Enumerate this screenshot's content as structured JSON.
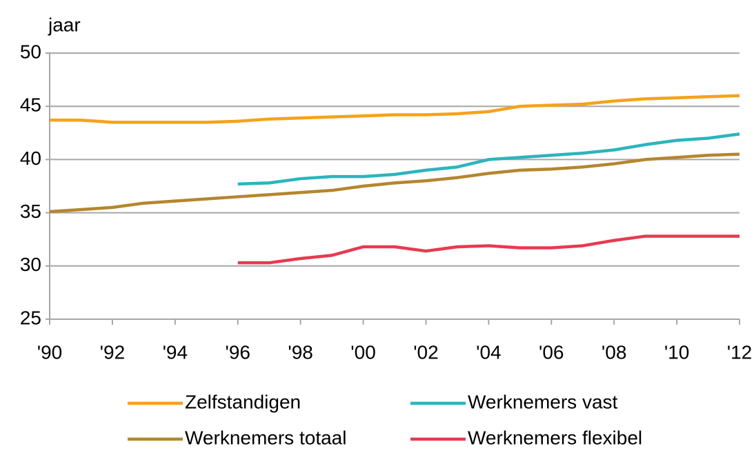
{
  "chart_data": {
    "type": "line",
    "y_label": "jaar",
    "x": [
      1990,
      1991,
      1992,
      1993,
      1994,
      1995,
      1996,
      1997,
      1998,
      1999,
      2000,
      2001,
      2002,
      2003,
      2004,
      2005,
      2006,
      2007,
      2008,
      2009,
      2010,
      2011,
      2012
    ],
    "series": [
      {
        "name": "Zelfstandigen",
        "color": "#f5a31a",
        "values": [
          43.7,
          43.7,
          43.5,
          43.5,
          43.5,
          43.5,
          43.6,
          43.8,
          43.9,
          44.0,
          44.1,
          44.2,
          44.2,
          44.3,
          44.5,
          45.0,
          45.1,
          45.2,
          45.5,
          45.7,
          45.8,
          45.9,
          46.0
        ]
      },
      {
        "name": "Werknemers vast",
        "color": "#2bb5bd",
        "values": [
          null,
          null,
          null,
          null,
          null,
          null,
          37.7,
          37.8,
          38.2,
          38.4,
          38.4,
          38.6,
          39.0,
          39.3,
          40.0,
          40.2,
          40.4,
          40.6,
          40.9,
          41.4,
          41.8,
          42.0,
          42.4
        ]
      },
      {
        "name": "Werknemers totaal",
        "color": "#b5862f",
        "values": [
          35.1,
          35.3,
          35.5,
          35.9,
          36.1,
          36.3,
          36.5,
          36.7,
          36.9,
          37.1,
          37.5,
          37.8,
          38.0,
          38.3,
          38.7,
          39.0,
          39.1,
          39.3,
          39.6,
          40.0,
          40.2,
          40.4,
          40.5
        ]
      },
      {
        "name": "Werknemers flexibel",
        "color": "#e83a50",
        "values": [
          null,
          null,
          null,
          null,
          null,
          null,
          30.3,
          30.3,
          30.7,
          31.0,
          31.8,
          31.8,
          31.4,
          31.8,
          31.9,
          31.7,
          31.7,
          31.9,
          32.4,
          32.8,
          32.8,
          32.8,
          32.8
        ]
      }
    ],
    "xlim": [
      1990,
      2012
    ],
    "xticks": [
      {
        "value": 1990,
        "label": "'90"
      },
      {
        "value": 1992,
        "label": "'92"
      },
      {
        "value": 1994,
        "label": "'94"
      },
      {
        "value": 1996,
        "label": "'96"
      },
      {
        "value": 1998,
        "label": "'98"
      },
      {
        "value": 2000,
        "label": "'00"
      },
      {
        "value": 2002,
        "label": "'02"
      },
      {
        "value": 2004,
        "label": "'04"
      },
      {
        "value": 2006,
        "label": "'06"
      },
      {
        "value": 2008,
        "label": "'08"
      },
      {
        "value": 2010,
        "label": "'10"
      },
      {
        "value": 2012,
        "label": "'12"
      }
    ],
    "ylim": [
      25,
      50
    ],
    "yticks": [
      25,
      30,
      35,
      40,
      45,
      50
    ],
    "grid": true,
    "legend": "bottom"
  }
}
